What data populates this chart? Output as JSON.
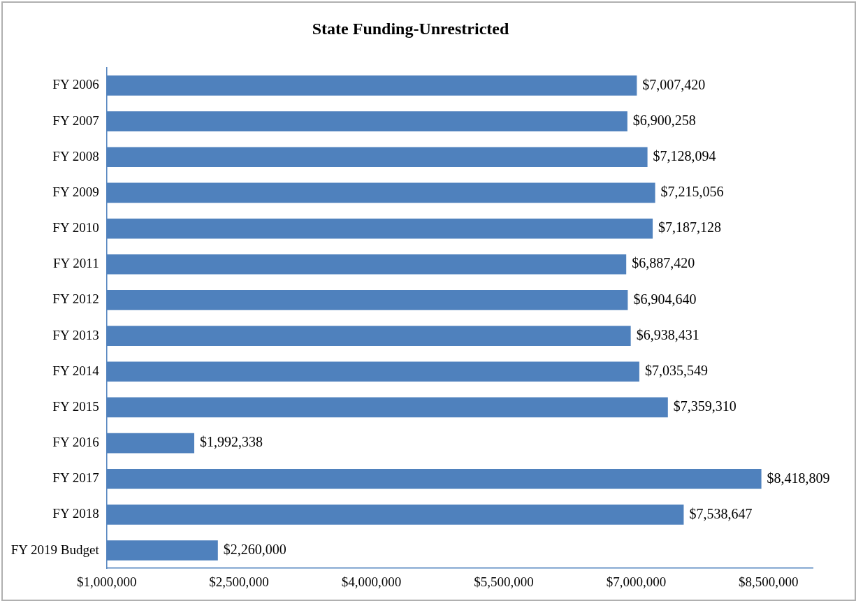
{
  "chart_data": {
    "type": "bar",
    "orientation": "horizontal",
    "title": "State Funding-Unrestricted",
    "categories": [
      "FY 2006",
      "FY 2007",
      "FY 2008",
      "FY 2009",
      "FY 2010",
      "FY 2011",
      "FY 2012",
      "FY 2013",
      "FY 2014",
      "FY 2015",
      "FY 2016",
      "FY 2017",
      "FY 2018",
      "FY 2019 Budget"
    ],
    "values": [
      7007420,
      6900258,
      7128094,
      7215056,
      7187128,
      6887420,
      6904640,
      6938431,
      7035549,
      7359310,
      1992338,
      8418809,
      7538647,
      2260000
    ],
    "value_labels": [
      "$7,007,420",
      "$6,900,258",
      "$7,128,094",
      "$7,215,056",
      "$7,187,128",
      "$6,887,420",
      "$6,904,640",
      "$6,938,431",
      "$7,035,549",
      "$7,359,310",
      "$1,992,338",
      "$8,418,809",
      "$7,538,647",
      "$2,260,000"
    ],
    "color": "#4f81bd",
    "xlim": [
      1000000,
      9000000
    ],
    "xticks": [
      {
        "value": 1000000,
        "label": "$1,000,000"
      },
      {
        "value": 2500000,
        "label": "$2,500,000"
      },
      {
        "value": 4000000,
        "label": "$4,000,000"
      },
      {
        "value": 5500000,
        "label": "$5,500,000"
      },
      {
        "value": 7000000,
        "label": "$7,000,000"
      },
      {
        "value": 8500000,
        "label": "$8,500,000"
      }
    ],
    "grid": false,
    "legend": false
  }
}
